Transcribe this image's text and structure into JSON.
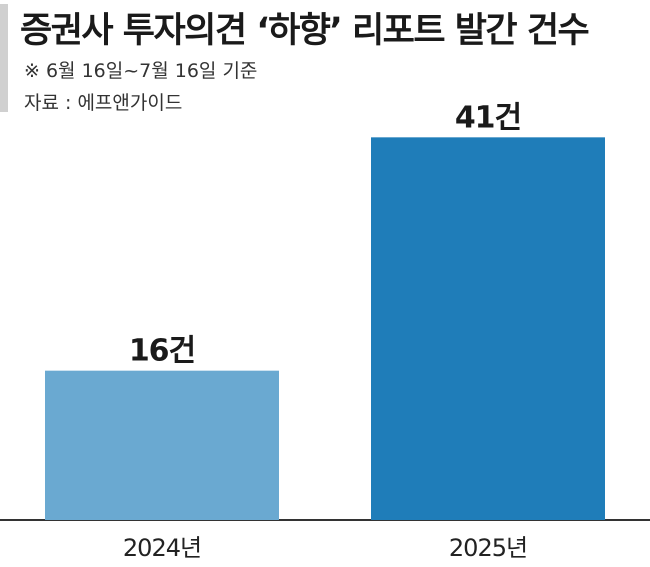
{
  "chart_data": {
    "type": "bar",
    "title": "증권사 투자의견 ‘하향’ 리포트 발간 건수",
    "notes": [
      "※ 6월 16일~7월 16일 기준",
      "자료 : 에프앤가이드"
    ],
    "categories": [
      "2024년",
      "2025년"
    ],
    "values": [
      16,
      41
    ],
    "value_labels": [
      "16건",
      "41건"
    ],
    "unit": "건",
    "colors": [
      "#6aa9d1",
      "#1f7db9"
    ],
    "ylim": [
      0,
      45
    ],
    "grid": false,
    "legend": "none"
  }
}
